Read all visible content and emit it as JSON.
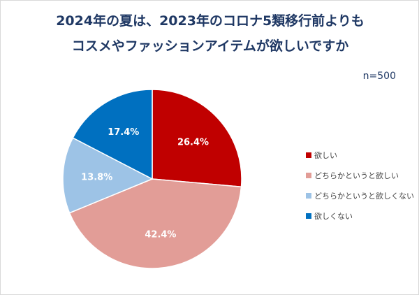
{
  "chart_data": {
    "type": "pie",
    "title": [
      "2024年の夏は、2023年のコロナ5類移行前よりも",
      "コスメやファッションアイテムが欲しいですか"
    ],
    "annotation": "n=500",
    "categories": [
      "欲しい",
      "どちらかというと欲しい",
      "どちらかというと欲しくない",
      "欲しくない"
    ],
    "values": [
      26.4,
      42.4,
      13.8,
      17.4
    ],
    "labels": [
      "26.4%",
      "42.4%",
      "13.8%",
      "17.4%"
    ],
    "colors": [
      "#C00000",
      "#E29D97",
      "#9DC3E6",
      "#0070C0"
    ],
    "start_angle": "12 o'clock, clockwise",
    "legend_position": "right"
  }
}
